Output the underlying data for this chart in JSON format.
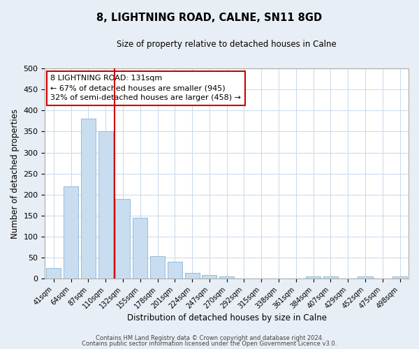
{
  "title": "8, LIGHTNING ROAD, CALNE, SN11 8GD",
  "subtitle": "Size of property relative to detached houses in Calne",
  "xlabel": "Distribution of detached houses by size in Calne",
  "ylabel": "Number of detached properties",
  "bar_labels": [
    "41sqm",
    "64sqm",
    "87sqm",
    "110sqm",
    "132sqm",
    "155sqm",
    "178sqm",
    "201sqm",
    "224sqm",
    "247sqm",
    "270sqm",
    "292sqm",
    "315sqm",
    "338sqm",
    "361sqm",
    "384sqm",
    "407sqm",
    "429sqm",
    "452sqm",
    "475sqm",
    "498sqm"
  ],
  "bar_values": [
    25,
    220,
    380,
    350,
    190,
    145,
    53,
    40,
    13,
    8,
    5,
    0,
    0,
    0,
    0,
    5,
    5,
    0,
    5,
    0,
    5
  ],
  "bar_color": "#c9ddf0",
  "bar_edge_color": "#8ab4d4",
  "vline_color": "#cc0000",
  "ylim": [
    0,
    500
  ],
  "yticks": [
    0,
    50,
    100,
    150,
    200,
    250,
    300,
    350,
    400,
    450,
    500
  ],
  "annotation_title": "8 LIGHTNING ROAD: 131sqm",
  "annotation_line1": "← 67% of detached houses are smaller (945)",
  "annotation_line2": "32% of semi-detached houses are larger (458) →",
  "annotation_box_facecolor": "#ffffff",
  "annotation_box_edgecolor": "#cc0000",
  "grid_color": "#c8d8ea",
  "plot_bg_color": "#ffffff",
  "fig_bg_color": "#e8eef5",
  "footer1": "Contains HM Land Registry data © Crown copyright and database right 2024.",
  "footer2": "Contains public sector information licensed under the Open Government Licence v3.0.",
  "vline_bar_index": 4
}
